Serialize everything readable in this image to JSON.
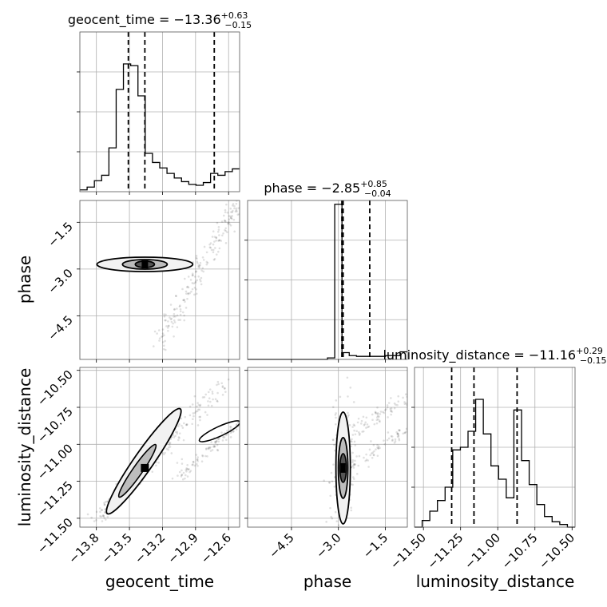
{
  "chart_data": {
    "type": "corner",
    "parameters": [
      "geocent_time",
      "phase",
      "luminosity_distance"
    ],
    "axis_labels": {
      "geocent_time": "geocent_time",
      "phase": "phase",
      "luminosity_distance": "luminosity_distance"
    },
    "titles": [
      {
        "param": "geocent_time",
        "label": "geocent_time",
        "median": "−13.36",
        "plus": "+0.63",
        "minus": "−0.15"
      },
      {
        "param": "phase",
        "label": "phase",
        "median": "−2.85",
        "plus": "+0.85",
        "minus": "−0.04"
      },
      {
        "param": "luminosity_distance",
        "label": "luminosity_distance",
        "median": "−11.16",
        "plus": "+0.29",
        "minus": "−0.15"
      }
    ],
    "ranges": {
      "geocent_time": [
        -13.95,
        -12.5
      ],
      "phase": [
        -5.9,
        -0.8
      ],
      "luminosity_distance": [
        -11.56,
        -10.48
      ]
    },
    "ticks": {
      "geocent_time": {
        "values": [
          -13.8,
          -13.5,
          -13.2,
          -12.9,
          -12.6
        ],
        "labels": [
          "−13.8",
          "−13.5",
          "−13.2",
          "−12.9",
          "−12.6"
        ]
      },
      "phase": {
        "values": [
          -4.5,
          -3.0,
          -1.5
        ],
        "labels": [
          "−4.5",
          "−3.0",
          "−1.5"
        ]
      },
      "luminosity_distance": {
        "values": [
          -11.5,
          -11.25,
          -11.0,
          -10.75,
          -10.5
        ],
        "labels": [
          "−11.50",
          "−11.25",
          "−11.00",
          "−10.75",
          "−10.50"
        ]
      }
    },
    "quantiles": {
      "geocent_time": [
        -13.51,
        -13.36,
        -12.73
      ],
      "phase": [
        -2.89,
        -2.85,
        -2.0
      ],
      "luminosity_distance": [
        -11.31,
        -11.16,
        -10.87
      ]
    },
    "histograms": {
      "geocent_time": [
        0.02,
        0.05,
        0.12,
        0.18,
        0.48,
        1.12,
        1.4,
        1.38,
        1.05,
        0.42,
        0.32,
        0.26,
        0.2,
        0.15,
        0.11,
        0.08,
        0.07,
        0.1,
        0.2,
        0.18,
        0.22,
        0.25
      ],
      "phase": [
        0,
        0,
        0,
        0,
        0,
        0,
        0,
        0,
        0,
        0,
        0,
        0.04,
        4.1,
        0.18,
        0.1,
        0.08,
        0.08,
        0.08,
        0.08,
        0.1,
        0.1,
        0.2
      ],
      "luminosity_distance": [
        0.0,
        0.05,
        0.12,
        0.2,
        0.3,
        0.58,
        0.6,
        0.72,
        0.96,
        0.7,
        0.46,
        0.36,
        0.22,
        0.88,
        0.5,
        0.32,
        0.17,
        0.08,
        0.04,
        0.02,
        0.0
      ]
    },
    "hist_ymax": {
      "geocent_time": 1.75,
      "phase": 4.2,
      "luminosity_distance": 1.2
    },
    "contour_levels": 4,
    "grid": true,
    "legend": "none"
  }
}
